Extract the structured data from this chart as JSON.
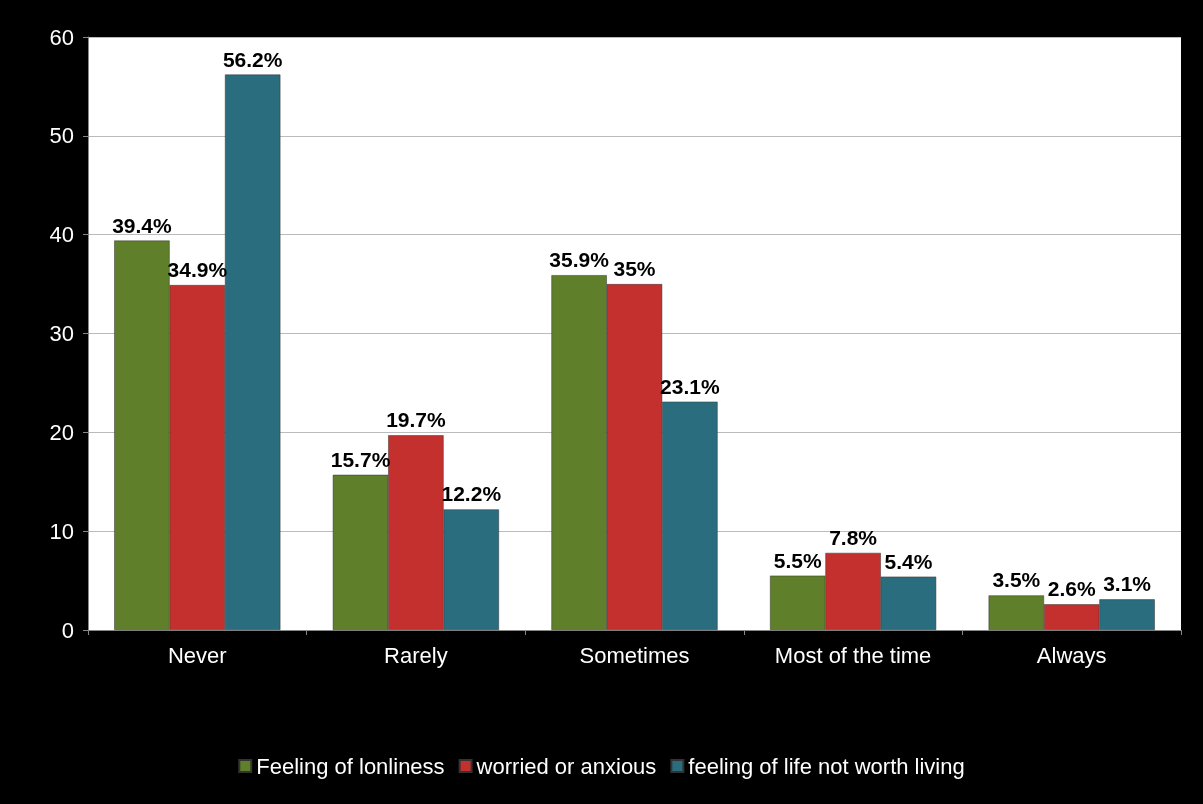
{
  "chart_data": {
    "type": "bar",
    "categories": [
      "Never",
      "Rarely",
      "Sometimes",
      "Most of the time",
      "Always"
    ],
    "series": [
      {
        "name": "Feeling of lonliness",
        "color": "#5f7f2b",
        "values": [
          39.4,
          15.7,
          35.9,
          5.5,
          3.5
        ],
        "value_labels": [
          "39.4%",
          "15.7%",
          "35.9%",
          "5.5%",
          "3.5%"
        ]
      },
      {
        "name": "worried or anxious",
        "color": "#c3302e",
        "values": [
          34.9,
          19.7,
          35,
          7.8,
          2.6
        ],
        "value_labels": [
          "34.9%",
          "19.7%",
          "35%",
          "7.8%",
          "2.6%"
        ]
      },
      {
        "name": "feeling of life not worth living",
        "color": "#2a6d7f",
        "values": [
          56.2,
          12.2,
          23.1,
          5.4,
          3.1
        ],
        "value_labels": [
          "56.2%",
          "12.2%",
          "23.1%",
          "5.4%",
          "3.1%"
        ]
      }
    ],
    "ylim": [
      0,
      60
    ],
    "yticks": [
      0,
      10,
      20,
      30,
      40,
      50,
      60
    ],
    "grid": "y",
    "legend": "bottom"
  }
}
